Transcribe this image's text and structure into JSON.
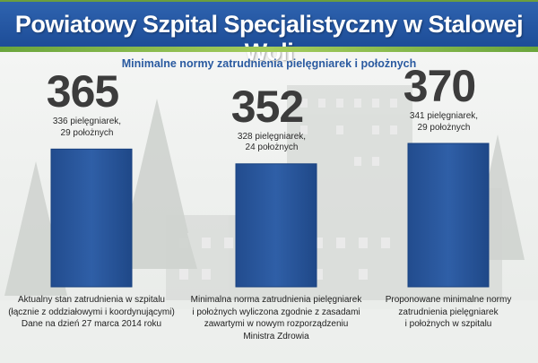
{
  "header": {
    "title": "Powiatowy Szpital Specjalistyczny w  Stalowej Woli"
  },
  "chart_data": {
    "type": "bar",
    "title": "Minimalne normy zatrudnienia pielęgniarek i położnych",
    "categories": [
      "Aktualny stan zatrudnienia w szpitalu (łącznie z oddziałowymi i koordynującymi) Dane na dzień 27 marca 2014 roku",
      "Minimalna norma zatrudnienia pielęgniarek i położnych wyliczona zgodnie z zasadami zawartymi w nowym rozporządzeniu Ministra Zdrowia",
      "Proponowane minimalne normy zatrudnienia pielęgniarek i położnych w szpitalu"
    ],
    "values": [
      365,
      352,
      370
    ],
    "value_labels": [
      "365",
      "352",
      "370"
    ],
    "details": [
      [
        "336 pielęgniarek,",
        "29 położnych"
      ],
      [
        "328 pielęgniarek,",
        "24 położnych"
      ],
      [
        "341 pielęgniarek,",
        "29 położnych"
      ]
    ],
    "captions": [
      [
        "Aktualny stan zatrudnienia w szpitalu",
        "(łącznie z oddziałowymi i koordynującymi)",
        "Dane na dzień 27 marca 2014 roku"
      ],
      [
        "Minimalna norma zatrudnienia pielęgniarek",
        "i położnych wyliczona zgodnie z zasadami",
        "zawartymi w nowym rozporządzeniu",
        "Ministra Zdrowia"
      ],
      [
        "Proponowane minimalne normy",
        "zatrudnienia pielęgniarek",
        "i położnych w szpitalu"
      ]
    ],
    "bar_color": "#2f5fa7",
    "ylim": [
      0,
      370
    ]
  }
}
